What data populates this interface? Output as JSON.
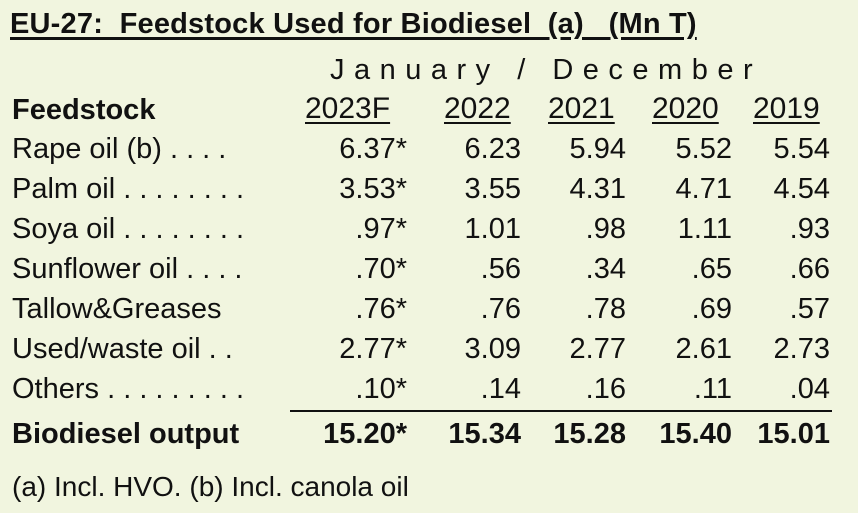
{
  "title": "EU-27:  Feedstock Used for Biodiesel  (a)   (Mn T)",
  "period": "January / December",
  "header": {
    "label": "Feedstock",
    "years": [
      "2023F",
      "2022",
      "2021",
      "2020",
      "2019"
    ]
  },
  "rows": [
    {
      "label": "Rape oil (b) . . . .",
      "values": [
        "6.37*",
        "6.23",
        "5.94",
        "5.52",
        "5.54"
      ]
    },
    {
      "label": "Palm oil . . . . . . . .",
      "values": [
        "3.53*",
        "3.55",
        "4.31",
        "4.71",
        "4.54"
      ]
    },
    {
      "label": "Soya oil . . . . . . . .",
      "values": [
        ".97*",
        "1.01",
        ".98",
        "1.11",
        ".93"
      ]
    },
    {
      "label": "Sunflower oil . . . .",
      "values": [
        ".70*",
        ".56",
        ".34",
        ".65",
        ".66"
      ]
    },
    {
      "label": "Tallow&Greases",
      "values": [
        ".76*",
        ".76",
        ".78",
        ".69",
        ".57"
      ]
    },
    {
      "label": "Used/waste oil . .",
      "values": [
        "2.77*",
        "3.09",
        "2.77",
        "2.61",
        "2.73"
      ]
    },
    {
      "label": "Others . . . . . . . . .",
      "values": [
        ".10*",
        ".14",
        ".16",
        ".11",
        ".04"
      ]
    }
  ],
  "total": {
    "label": "Biodiesel output",
    "values": [
      "15.20*",
      "15.34",
      "15.28",
      "15.40",
      "15.01"
    ]
  },
  "note": "(a) Incl. HVO. (b) Incl. canola oil"
}
